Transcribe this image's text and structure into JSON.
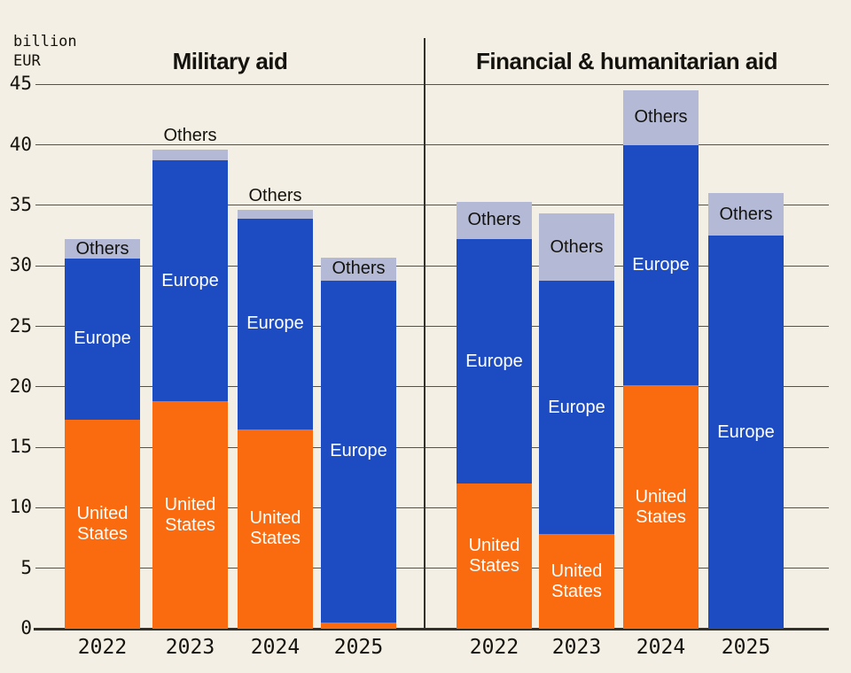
{
  "chart_data": {
    "type": "bar",
    "stacked": true,
    "unit_label": "billion\nEUR",
    "ylabel": "billion EUR",
    "ylim": [
      0,
      45
    ],
    "yticks": [
      0,
      5,
      10,
      15,
      20,
      25,
      30,
      35,
      40,
      45
    ],
    "grid": true,
    "legend_position": "none",
    "categories": [
      "2022",
      "2023",
      "2024",
      "2025"
    ],
    "segment_names": [
      "United States",
      "Europe",
      "Others"
    ],
    "colors": {
      "United States": "#FA6A0E",
      "Europe": "#1D4CC2",
      "Others": "#B4BAD6",
      "background": "#f4efe4",
      "grid": "#55524a",
      "axis": "#32302b"
    },
    "label_text_colors": {
      "United States": "#ffffff",
      "Europe": "#ffffff",
      "Others": "#14130e"
    },
    "panels": [
      {
        "title": "Military aid",
        "bars": [
          {
            "category": "2022",
            "segments": [
              {
                "name": "United States",
                "value": 17.3,
                "label": "United States",
                "label_pos": "inside"
              },
              {
                "name": "Europe",
                "value": 13.3,
                "label": "Europe",
                "label_pos": "inside"
              },
              {
                "name": "Others",
                "value": 1.6,
                "label": "Others",
                "label_pos": "inside"
              }
            ]
          },
          {
            "category": "2023",
            "segments": [
              {
                "name": "United States",
                "value": 18.8,
                "label": "United States",
                "label_pos": "inside"
              },
              {
                "name": "Europe",
                "value": 19.9,
                "label": "Europe",
                "label_pos": "inside"
              },
              {
                "name": "Others",
                "value": 0.9,
                "label": "Others",
                "label_pos": "above"
              }
            ]
          },
          {
            "category": "2024",
            "segments": [
              {
                "name": "United States",
                "value": 16.5,
                "label": "United States",
                "label_pos": "inside"
              },
              {
                "name": "Europe",
                "value": 17.4,
                "label": "Europe",
                "label_pos": "inside"
              },
              {
                "name": "Others",
                "value": 0.7,
                "label": "Others",
                "label_pos": "above"
              }
            ]
          },
          {
            "category": "2025",
            "segments": [
              {
                "name": "United States",
                "value": 0.5,
                "label": null,
                "label_pos": null
              },
              {
                "name": "Europe",
                "value": 28.3,
                "label": "Europe",
                "label_pos": "inside"
              },
              {
                "name": "Others",
                "value": 1.9,
                "label": "Others",
                "label_pos": "inside"
              }
            ]
          }
        ]
      },
      {
        "title": "Financial & humanitarian aid",
        "bars": [
          {
            "category": "2022",
            "segments": [
              {
                "name": "United States",
                "value": 12.0,
                "label": "United States",
                "label_pos": "inside"
              },
              {
                "name": "Europe",
                "value": 20.2,
                "label": "Europe",
                "label_pos": "inside"
              },
              {
                "name": "Others",
                "value": 3.1,
                "label": "Others",
                "label_pos": "inside"
              }
            ]
          },
          {
            "category": "2023",
            "segments": [
              {
                "name": "United States",
                "value": 7.8,
                "label": "United States",
                "label_pos": "inside"
              },
              {
                "name": "Europe",
                "value": 21.0,
                "label": "Europe",
                "label_pos": "inside"
              },
              {
                "name": "Others",
                "value": 5.5,
                "label": "Others",
                "label_pos": "inside"
              }
            ]
          },
          {
            "category": "2024",
            "segments": [
              {
                "name": "United States",
                "value": 20.1,
                "label": "United States",
                "label_pos": "inside"
              },
              {
                "name": "Europe",
                "value": 19.9,
                "label": "Europe",
                "label_pos": "inside"
              },
              {
                "name": "Others",
                "value": 4.5,
                "label": "Others",
                "label_pos": "inside"
              }
            ]
          },
          {
            "category": "2025",
            "segments": [
              {
                "name": "United States",
                "value": 0,
                "label": null,
                "label_pos": null
              },
              {
                "name": "Europe",
                "value": 32.5,
                "label": "Europe",
                "label_pos": "inside"
              },
              {
                "name": "Others",
                "value": 3.5,
                "label": "Others",
                "label_pos": "inside"
              }
            ]
          }
        ]
      }
    ]
  }
}
